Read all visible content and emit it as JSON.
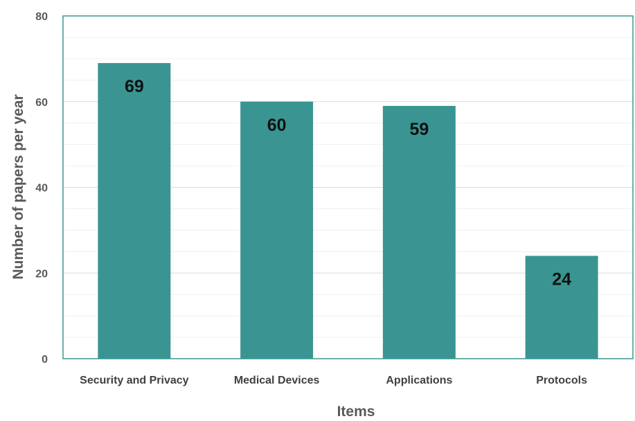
{
  "chart_data": {
    "type": "bar",
    "title": "",
    "xlabel": "Items",
    "ylabel": "Number of papers per year",
    "categories": [
      "Security and Privacy",
      "Medical Devices",
      "Applications",
      "Protocols"
    ],
    "values": [
      69,
      60,
      59,
      24
    ],
    "data_labels": [
      "69",
      "60",
      "59",
      "24"
    ],
    "ylim": [
      0,
      80
    ],
    "yticks": [
      0,
      20,
      40,
      60,
      80
    ],
    "ytick_labels": [
      "0",
      "20",
      "40",
      "60",
      "80"
    ],
    "grid": true,
    "legend": "none",
    "colors": {
      "bar": "#3a9592",
      "plot_border": "#3a9592",
      "grid_major": "#d9d9d9",
      "grid_minor": "#efefef"
    }
  }
}
